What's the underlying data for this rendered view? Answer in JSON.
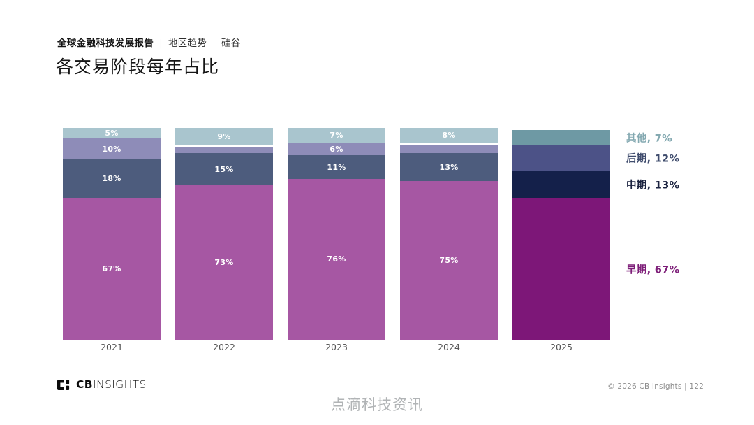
{
  "header": {
    "report_title": "全球金融科技发展报告",
    "separator": "|",
    "section": "地区趋势",
    "subsection": "硅谷",
    "title": "各交易阶段每年占比"
  },
  "chart_data": {
    "type": "bar",
    "subtype": "stacked-percentage",
    "title": "各交易阶段每年占比",
    "categories": [
      "2021",
      "2022",
      "2023",
      "2024",
      "2025"
    ],
    "series": [
      {
        "name": "早期",
        "values": [
          67,
          73,
          76,
          75,
          67
        ]
      },
      {
        "name": "中期",
        "values": [
          18,
          15,
          11,
          13,
          13
        ]
      },
      {
        "name": "后期",
        "values": [
          10,
          3,
          6,
          4,
          12
        ]
      },
      {
        "name": "其他",
        "values": [
          5,
          9,
          7,
          8,
          7
        ]
      }
    ],
    "stack_order_bottom_to_top": [
      "早期",
      "中期",
      "后期",
      "其他"
    ],
    "ylim": [
      0,
      100
    ],
    "grid": false,
    "legend_position": "right-of-last-bar",
    "colors": {
      "其他": "#a9c5ce",
      "后期": "#8e8cb8",
      "中期": "#4d5c7d",
      "早期": "#a657a3",
      "其他_2025": "#6e99a4",
      "后期_2025": "#4c5287",
      "中期_2025": "#14204a",
      "早期_2025": "#7d1778"
    },
    "bars": [
      {
        "year": "2021",
        "segments": [
          {
            "stage": "其他",
            "value": 5,
            "label": "5%",
            "color": "#a9c5ce"
          },
          {
            "stage": "后期",
            "value": 10,
            "label": "10%",
            "color": "#8e8cb8"
          },
          {
            "stage": "中期",
            "value": 18,
            "label": "18%",
            "color": "#4d5c7d"
          },
          {
            "stage": "早期",
            "value": 67,
            "label": "67%",
            "color": "#a657a3"
          }
        ]
      },
      {
        "year": "2022",
        "segments": [
          {
            "stage": "其他",
            "value": 9,
            "label": "9%",
            "color": "#a9c5ce",
            "gap_below": true
          },
          {
            "stage": "后期",
            "value": 3,
            "label": "",
            "color": "#8e8cb8"
          },
          {
            "stage": "中期",
            "value": 15,
            "label": "15%",
            "color": "#4d5c7d"
          },
          {
            "stage": "早期",
            "value": 73,
            "label": "73%",
            "color": "#a657a3"
          }
        ]
      },
      {
        "year": "2023",
        "segments": [
          {
            "stage": "其他",
            "value": 7,
            "label": "7%",
            "color": "#a9c5ce"
          },
          {
            "stage": "后期",
            "value": 6,
            "label": "6%",
            "color": "#8e8cb8"
          },
          {
            "stage": "中期",
            "value": 11,
            "label": "11%",
            "color": "#4d5c7d"
          },
          {
            "stage": "早期",
            "value": 76,
            "label": "76%",
            "color": "#a657a3"
          }
        ]
      },
      {
        "year": "2024",
        "segments": [
          {
            "stage": "其他",
            "value": 8,
            "label": "8%",
            "color": "#a9c5ce",
            "gap_below": true
          },
          {
            "stage": "后期",
            "value": 4,
            "label": "",
            "color": "#8e8cb8"
          },
          {
            "stage": "中期",
            "value": 13,
            "label": "13%",
            "color": "#4d5c7d"
          },
          {
            "stage": "早期",
            "value": 75,
            "label": "75%",
            "color": "#a657a3"
          }
        ]
      },
      {
        "year": "2025",
        "segments": [
          {
            "stage": "其他",
            "value": 7,
            "label": "",
            "color": "#6e99a4"
          },
          {
            "stage": "后期",
            "value": 12,
            "label": "",
            "color": "#4c5287"
          },
          {
            "stage": "中期",
            "value": 13,
            "label": "",
            "color": "#14204a"
          },
          {
            "stage": "早期",
            "value": 67,
            "label": "",
            "color": "#7d1778"
          }
        ]
      }
    ]
  },
  "legend": {
    "items": [
      {
        "label": "其他, 7%",
        "color": "#84a9b1"
      },
      {
        "label": "后期, 12%",
        "color": "#3f4c6d"
      },
      {
        "label": "中期, 13%",
        "color": "#1b2340"
      },
      {
        "label": "早期, 67%",
        "color": "#7d1d78"
      }
    ]
  },
  "footer": {
    "logo_bold": "CB",
    "logo_light": "INSIGHTS",
    "copyright": "© 2026 CB Insights  |  122",
    "watermark": "点滴科技资讯"
  }
}
